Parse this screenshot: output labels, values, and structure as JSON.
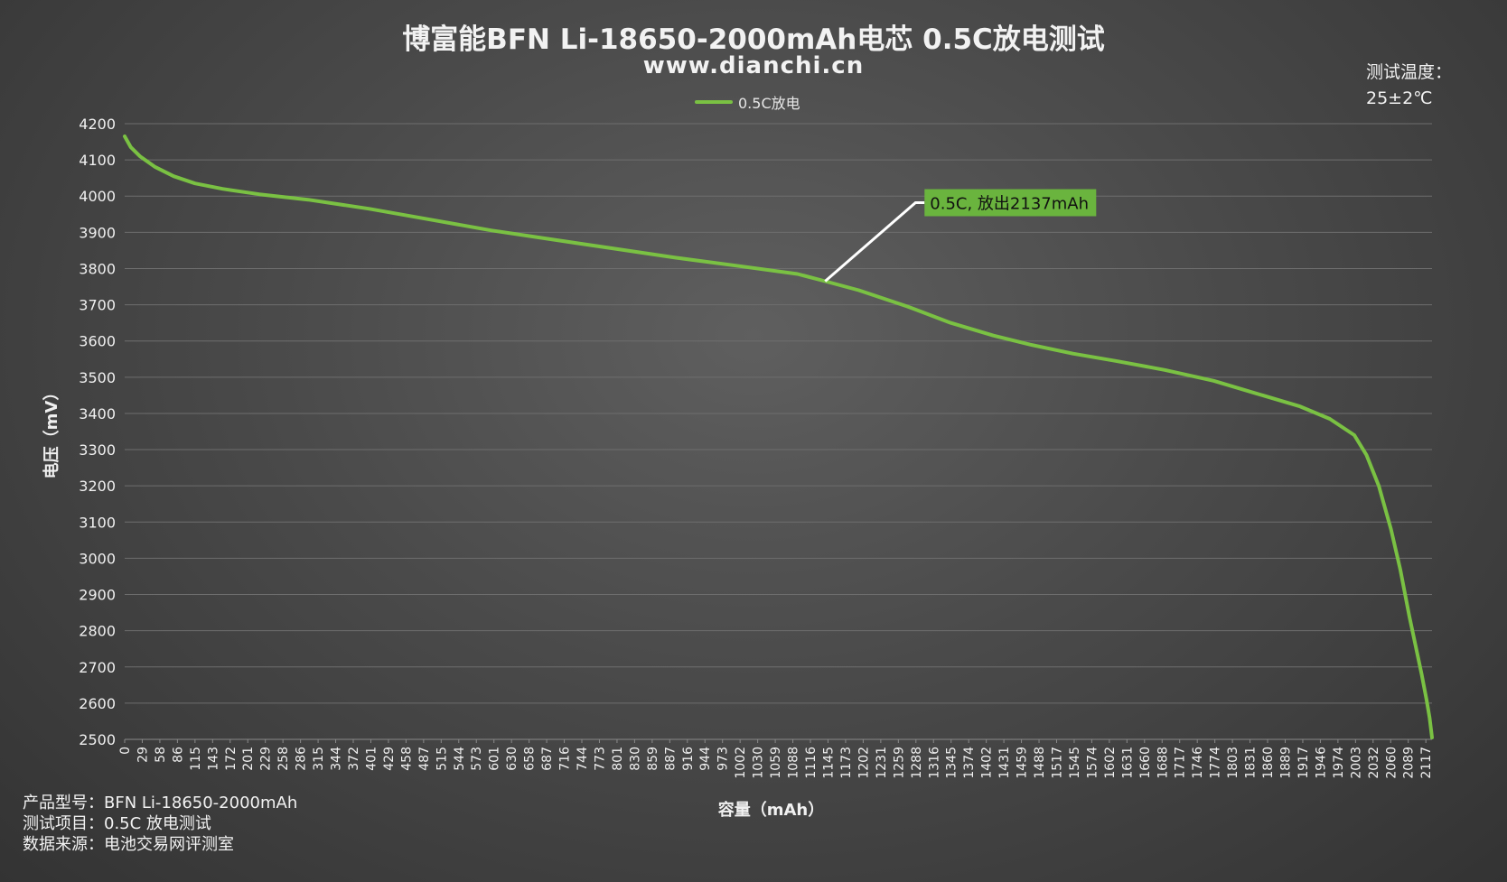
{
  "header": {
    "title": "博富能BFN Li-18650-2000mAh电芯 0.5C放电测试",
    "subtitle": "www.dianchi.cn"
  },
  "temperature": {
    "label": "测试温度：",
    "value": "25±2℃"
  },
  "footer": {
    "model": "产品型号：BFN Li-18650-2000mAh",
    "test_item": "测试项目：0.5C 放电测试",
    "source": "数据来源：电池交易网评测室"
  },
  "colors": {
    "series": "#7ac143",
    "annotation_bg": "#6ab43e",
    "grid": "#6e6e6e"
  },
  "chart_data": {
    "type": "line",
    "title": "博富能BFN Li-18650-2000mAh电芯 0.5C放电测试",
    "xlabel": "容量（mAh）",
    "ylabel": "电压（mV）",
    "ylim": [
      2500,
      4200
    ],
    "y_ticks": [
      4200,
      4100,
      4000,
      3900,
      3800,
      3700,
      3600,
      3500,
      3400,
      3300,
      3200,
      3100,
      3000,
      2900,
      2800,
      2700,
      2600,
      2500
    ],
    "x_tick_labels": [
      "0",
      "29",
      "58",
      "86",
      "115",
      "143",
      "172",
      "201",
      "229",
      "258",
      "286",
      "315",
      "344",
      "372",
      "401",
      "429",
      "458",
      "487",
      "515",
      "544",
      "573",
      "601",
      "630",
      "658",
      "687",
      "716",
      "744",
      "773",
      "801",
      "830",
      "859",
      "887",
      "916",
      "944",
      "973",
      "1002",
      "1030",
      "1059",
      "1088",
      "1116",
      "1145",
      "1173",
      "1202",
      "1231",
      "1259",
      "1288",
      "1316",
      "1345",
      "1374",
      "1402",
      "1431",
      "1459",
      "1488",
      "1517",
      "1545",
      "1574",
      "1602",
      "1631",
      "1660",
      "1688",
      "1717",
      "1746",
      "1774",
      "1803",
      "1831",
      "1860",
      "1889",
      "1917",
      "1946",
      "1974",
      "2003",
      "2032",
      "2060",
      "2089",
      "2117"
    ],
    "grid": true,
    "legend_position": "top-center",
    "series": [
      {
        "name": "0.5C放电",
        "x": [
          0,
          10,
          25,
          50,
          80,
          115,
          160,
          220,
          300,
          400,
          500,
          600,
          700,
          800,
          900,
          1000,
          1100,
          1145,
          1200,
          1280,
          1350,
          1420,
          1480,
          1550,
          1620,
          1700,
          1780,
          1850,
          1920,
          1970,
          2010,
          2030,
          2050,
          2070,
          2085,
          2100,
          2110,
          2120,
          2128,
          2133,
          2137
        ],
        "y": [
          4165,
          4135,
          4110,
          4080,
          4055,
          4035,
          4020,
          4005,
          3990,
          3965,
          3935,
          3905,
          3880,
          3855,
          3830,
          3808,
          3785,
          3765,
          3740,
          3695,
          3650,
          3615,
          3590,
          3565,
          3545,
          3520,
          3490,
          3455,
          3420,
          3385,
          3340,
          3285,
          3200,
          3080,
          2970,
          2840,
          2760,
          2680,
          2610,
          2560,
          2505
        ]
      }
    ],
    "annotations": [
      {
        "text": "0.5C, 放出2137mAh",
        "x": 1145,
        "y": 3765
      }
    ]
  }
}
